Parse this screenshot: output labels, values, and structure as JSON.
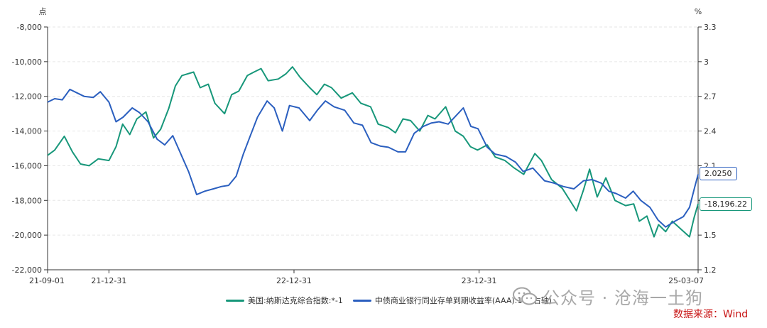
{
  "chart_data": {
    "type": "line",
    "left_unit": "点",
    "right_unit": "%",
    "x_ticks": [
      "21-09-01",
      "21-12-31",
      "22-12-31",
      "23-12-31",
      "25-03-07"
    ],
    "y_left": {
      "min": -22000,
      "max": -8000,
      "step": 2000,
      "ticks": [
        "-8,000",
        "-10,000",
        "-12,000",
        "-14,000",
        "-16,000",
        "-18,000",
        "-20,000",
        "-22,000"
      ]
    },
    "y_right": {
      "min": 1.2,
      "max": 3.3,
      "step": 0.3,
      "ticks": [
        "3.3",
        "3",
        "2.7",
        "2.4",
        "2.1",
        "1.8",
        "1.5",
        "1.2"
      ]
    },
    "grid": true,
    "legend_position": "bottom",
    "series": [
      {
        "name": "美国:纳斯达克综合指数:*-1",
        "axis": "left",
        "color": "#17977a",
        "last_label": "-18,196.22",
        "points": [
          [
            "2021-09-01",
            -15400
          ],
          [
            "2021-09-15",
            -15100
          ],
          [
            "2021-10-04",
            -14300
          ],
          [
            "2021-10-20",
            -15200
          ],
          [
            "2021-11-05",
            -15900
          ],
          [
            "2021-11-22",
            -16000
          ],
          [
            "2021-12-10",
            -15600
          ],
          [
            "2021-12-31",
            -15700
          ],
          [
            "2022-01-14",
            -14900
          ],
          [
            "2022-01-27",
            -13600
          ],
          [
            "2022-02-10",
            -14200
          ],
          [
            "2022-02-24",
            -13300
          ],
          [
            "2022-03-14",
            -12900
          ],
          [
            "2022-03-29",
            -14400
          ],
          [
            "2022-04-12",
            -13900
          ],
          [
            "2022-04-28",
            -12700
          ],
          [
            "2022-05-11",
            -11400
          ],
          [
            "2022-05-24",
            -10800
          ],
          [
            "2022-06-16",
            -10600
          ],
          [
            "2022-06-29",
            -11500
          ],
          [
            "2022-07-15",
            -11300
          ],
          [
            "2022-07-28",
            -12400
          ],
          [
            "2022-08-16",
            -13000
          ],
          [
            "2022-08-30",
            -11900
          ],
          [
            "2022-09-13",
            -11700
          ],
          [
            "2022-09-30",
            -10800
          ],
          [
            "2022-10-13",
            -10600
          ],
          [
            "2022-10-27",
            -10400
          ],
          [
            "2022-11-10",
            -11100
          ],
          [
            "2022-11-30",
            -11000
          ],
          [
            "2022-12-15",
            -10700
          ],
          [
            "2022-12-28",
            -10300
          ],
          [
            "2023-01-12",
            -10900
          ],
          [
            "2023-01-31",
            -11500
          ],
          [
            "2023-02-14",
            -11900
          ],
          [
            "2023-03-01",
            -11300
          ],
          [
            "2023-03-15",
            -11500
          ],
          [
            "2023-04-03",
            -12100
          ],
          [
            "2023-04-25",
            -11800
          ],
          [
            "2023-05-12",
            -12400
          ],
          [
            "2023-05-31",
            -12600
          ],
          [
            "2023-06-15",
            -13600
          ],
          [
            "2023-07-05",
            -13800
          ],
          [
            "2023-07-19",
            -14100
          ],
          [
            "2023-08-03",
            -13300
          ],
          [
            "2023-08-18",
            -13400
          ],
          [
            "2023-09-05",
            -14000
          ],
          [
            "2023-09-21",
            -13100
          ],
          [
            "2023-10-05",
            -13300
          ],
          [
            "2023-10-26",
            -12600
          ],
          [
            "2023-11-14",
            -14000
          ],
          [
            "2023-11-30",
            -14300
          ],
          [
            "2023-12-14",
            -14900
          ],
          [
            "2023-12-28",
            -15100
          ],
          [
            "2024-01-16",
            -14800
          ],
          [
            "2024-02-01",
            -15500
          ],
          [
            "2024-02-20",
            -15700
          ],
          [
            "2024-03-08",
            -16100
          ],
          [
            "2024-03-28",
            -16500
          ],
          [
            "2024-04-19",
            -15300
          ],
          [
            "2024-05-02",
            -15700
          ],
          [
            "2024-05-22",
            -16800
          ],
          [
            "2024-06-12",
            -17300
          ],
          [
            "2024-07-10",
            -18600
          ],
          [
            "2024-07-24",
            -17400
          ],
          [
            "2024-08-05",
            -16200
          ],
          [
            "2024-08-20",
            -17800
          ],
          [
            "2024-09-06",
            -16700
          ],
          [
            "2024-09-24",
            -18000
          ],
          [
            "2024-10-15",
            -18300
          ],
          [
            "2024-10-31",
            -18200
          ],
          [
            "2024-11-11",
            -19200
          ],
          [
            "2024-11-26",
            -18900
          ],
          [
            "2024-12-10",
            -20100
          ],
          [
            "2024-12-19",
            -19400
          ],
          [
            "2025-01-02",
            -19800
          ],
          [
            "2025-01-15",
            -19200
          ],
          [
            "2025-01-30",
            -19600
          ],
          [
            "2025-02-18",
            -20100
          ],
          [
            "2025-02-27",
            -19000
          ],
          [
            "2025-03-07",
            -18196.22
          ]
        ]
      },
      {
        "name": "中债商业银行同业存单到期收益率(AAA):1年(右轴)",
        "axis": "right",
        "color": "#2b5fbf",
        "last_label": "2.0250",
        "points": [
          [
            "2021-09-01",
            2.65
          ],
          [
            "2021-09-15",
            2.68
          ],
          [
            "2021-09-30",
            2.67
          ],
          [
            "2021-10-15",
            2.76
          ],
          [
            "2021-10-29",
            2.73
          ],
          [
            "2021-11-12",
            2.7
          ],
          [
            "2021-11-30",
            2.69
          ],
          [
            "2021-12-14",
            2.74
          ],
          [
            "2021-12-31",
            2.65
          ],
          [
            "2022-01-14",
            2.48
          ],
          [
            "2022-01-28",
            2.52
          ],
          [
            "2022-02-15",
            2.6
          ],
          [
            "2022-03-01",
            2.56
          ],
          [
            "2022-03-18",
            2.48
          ],
          [
            "2022-04-05",
            2.33
          ],
          [
            "2022-04-20",
            2.28
          ],
          [
            "2022-05-06",
            2.36
          ],
          [
            "2022-05-20",
            2.22
          ],
          [
            "2022-06-06",
            2.05
          ],
          [
            "2022-06-22",
            1.85
          ],
          [
            "2022-07-08",
            1.88
          ],
          [
            "2022-07-25",
            1.9
          ],
          [
            "2022-08-10",
            1.92
          ],
          [
            "2022-08-24",
            1.93
          ],
          [
            "2022-09-08",
            2.01
          ],
          [
            "2022-09-22",
            2.2
          ],
          [
            "2022-10-05",
            2.35
          ],
          [
            "2022-10-20",
            2.52
          ],
          [
            "2022-11-08",
            2.66
          ],
          [
            "2022-11-22",
            2.6
          ],
          [
            "2022-12-08",
            2.4
          ],
          [
            "2022-12-22",
            2.62
          ],
          [
            "2023-01-10",
            2.6
          ],
          [
            "2023-01-31",
            2.49
          ],
          [
            "2023-02-15",
            2.58
          ],
          [
            "2023-03-03",
            2.66
          ],
          [
            "2023-03-20",
            2.61
          ],
          [
            "2023-04-10",
            2.58
          ],
          [
            "2023-04-28",
            2.47
          ],
          [
            "2023-05-15",
            2.45
          ],
          [
            "2023-06-01",
            2.3
          ],
          [
            "2023-06-19",
            2.27
          ],
          [
            "2023-07-05",
            2.26
          ],
          [
            "2023-07-24",
            2.22
          ],
          [
            "2023-08-08",
            2.22
          ],
          [
            "2023-08-25",
            2.38
          ],
          [
            "2023-09-12",
            2.44
          ],
          [
            "2023-09-28",
            2.47
          ],
          [
            "2023-10-13",
            2.48
          ],
          [
            "2023-10-31",
            2.46
          ],
          [
            "2023-11-15",
            2.53
          ],
          [
            "2023-11-30",
            2.6
          ],
          [
            "2023-12-15",
            2.44
          ],
          [
            "2023-12-29",
            2.42
          ],
          [
            "2024-01-16",
            2.26
          ],
          [
            "2024-02-01",
            2.2
          ],
          [
            "2024-02-22",
            2.18
          ],
          [
            "2024-03-12",
            2.13
          ],
          [
            "2024-03-27",
            2.05
          ],
          [
            "2024-04-15",
            2.08
          ],
          [
            "2024-05-08",
            1.97
          ],
          [
            "2024-05-27",
            1.95
          ],
          [
            "2024-06-14",
            1.92
          ],
          [
            "2024-07-05",
            1.9
          ],
          [
            "2024-07-24",
            1.97
          ],
          [
            "2024-08-10",
            1.98
          ],
          [
            "2024-08-28",
            1.95
          ],
          [
            "2024-09-12",
            1.88
          ],
          [
            "2024-09-26",
            1.86
          ],
          [
            "2024-10-15",
            1.82
          ],
          [
            "2024-10-30",
            1.88
          ],
          [
            "2024-11-14",
            1.8
          ],
          [
            "2024-12-02",
            1.74
          ],
          [
            "2024-12-18",
            1.63
          ],
          [
            "2025-01-02",
            1.57
          ],
          [
            "2025-01-20",
            1.62
          ],
          [
            "2025-02-06",
            1.66
          ],
          [
            "2025-02-18",
            1.74
          ],
          [
            "2025-02-28",
            1.91
          ],
          [
            "2025-03-07",
            2.025
          ]
        ]
      }
    ]
  },
  "legend": {
    "series_0": "美国:纳斯达克综合指数:*-1",
    "series_1": "中债商业银行同业存单到期收益率(AAA):1年(右轴)"
  },
  "watermark": "公众号 · 沧海一土狗",
  "source_note": "数据来源：Wind",
  "colors": {
    "nasdaq": "#17977a",
    "yield": "#2b5fbf",
    "grid": "#e6e6e6",
    "axis": "#333333",
    "source": "#c81414"
  }
}
